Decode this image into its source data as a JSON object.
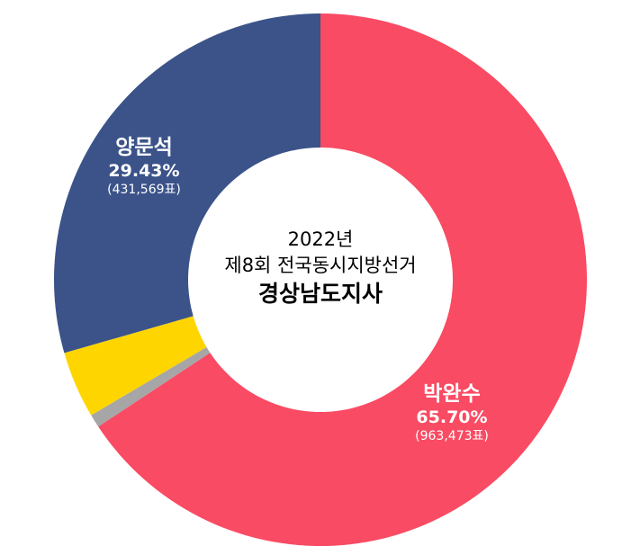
{
  "chart_data": {
    "type": "pie",
    "donut": true,
    "title_lines": [
      "2022년",
      "제8회 전국동시지방선거",
      "경상남도지사"
    ],
    "slices": [
      {
        "name": "박완수",
        "percent": 65.7,
        "votes_label": "(963,473표)",
        "percent_label": "65.70%",
        "color": "#F94B63",
        "labeled": true
      },
      {
        "name": "",
        "percent": 0.8,
        "color": "#A6A6A6",
        "labeled": false
      },
      {
        "name": "",
        "percent": 4.07,
        "color": "#FFD500",
        "labeled": false
      },
      {
        "name": "양문석",
        "percent": 29.43,
        "votes_label": "(431,569표)",
        "percent_label": "29.43%",
        "color": "#3B5389",
        "labeled": true
      }
    ],
    "direction": "clockwise from top",
    "legend": "none"
  }
}
